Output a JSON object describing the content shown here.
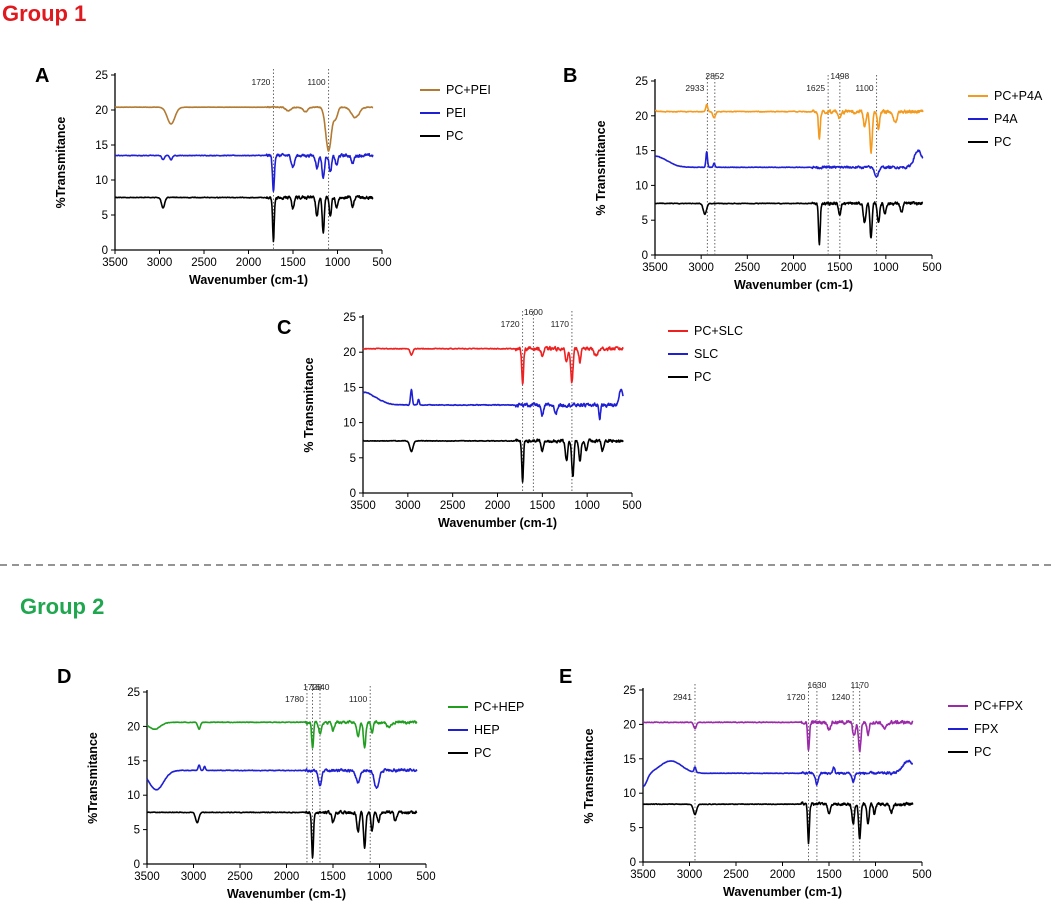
{
  "figure": {
    "group1_title": "Group 1",
    "group1_color": "#e0191f",
    "group2_title": "Group 2",
    "group2_color": "#1fa64f",
    "separator_color": "#555555"
  },
  "chart_data": [
    {
      "panel": "A",
      "type": "line",
      "xlabel": "Wavenumber (cm-1)",
      "ylabel": "%Transmitance",
      "xlim": [
        3500,
        500
      ],
      "ylim": [
        0,
        25
      ],
      "xticks": [
        3500,
        3000,
        2500,
        2000,
        1500,
        1000,
        500
      ],
      "yticks": [
        0,
        5,
        10,
        15,
        20,
        25
      ],
      "annotations": [
        {
          "x": 1720,
          "label": "1720"
        },
        {
          "x": 1100,
          "label": "1100"
        }
      ],
      "series": [
        {
          "name": "PC+PEI",
          "color": "#b27a33",
          "baseline": 20.4,
          "noise": 0.1,
          "features": [
            [
              2870,
              -2.4,
              60
            ],
            [
              1550,
              -0.5,
              40
            ],
            [
              1360,
              -0.6,
              40
            ],
            [
              1100,
              -6.2,
              45
            ],
            [
              1020,
              -1.5,
              30
            ],
            [
              800,
              -1.5,
              60
            ]
          ]
        },
        {
          "name": "PEI",
          "color": "#1f1fd4",
          "baseline": 13.5,
          "noise": 0.3,
          "features": [
            [
              2960,
              -0.6,
              20
            ],
            [
              2870,
              -0.6,
              20
            ],
            [
              1720,
              -5.2,
              15
            ],
            [
              1500,
              -1.6,
              25
            ],
            [
              1230,
              -1.8,
              20
            ],
            [
              1160,
              -3.2,
              20
            ],
            [
              1080,
              -2.4,
              20
            ],
            [
              1010,
              -1.4,
              20
            ],
            [
              830,
              -1.2,
              20
            ]
          ]
        },
        {
          "name": "PC",
          "color": "#000000",
          "baseline": 7.5,
          "noise": 0.3,
          "features": [
            [
              2960,
              -1.5,
              25
            ],
            [
              1720,
              -6.2,
              13
            ],
            [
              1500,
              -1.6,
              18
            ],
            [
              1230,
              -2.8,
              18
            ],
            [
              1160,
              -5.2,
              16
            ],
            [
              1080,
              -2.8,
              16
            ],
            [
              1010,
              -1.5,
              16
            ],
            [
              830,
              -1.4,
              18
            ]
          ]
        }
      ]
    },
    {
      "panel": "B",
      "type": "line",
      "xlabel": "Wavenumber (cm-1)",
      "ylabel": "% Transmitance",
      "xlim": [
        3500,
        500
      ],
      "ylim": [
        0,
        25
      ],
      "xticks": [
        3500,
        3000,
        2500,
        2000,
        1500,
        1000,
        500
      ],
      "yticks": [
        0,
        5,
        10,
        15,
        20,
        25
      ],
      "annotations": [
        {
          "x": 2933,
          "label": "2933"
        },
        {
          "x": 2852,
          "label": "2852"
        },
        {
          "x": 1625,
          "label": "1625"
        },
        {
          "x": 1498,
          "label": "1498"
        },
        {
          "x": 1100,
          "label": "1100"
        }
      ],
      "series": [
        {
          "name": "PC+P4A",
          "color": "#f39a1f",
          "baseline": 20.6,
          "noise": 0.35,
          "features": [
            [
              3500,
              0.2,
              20
            ],
            [
              2940,
              1.0,
              15
            ],
            [
              2860,
              -0.9,
              20
            ],
            [
              1720,
              -4.0,
              14
            ],
            [
              1500,
              -1.0,
              20
            ],
            [
              1230,
              -2.0,
              20
            ],
            [
              1160,
              -5.8,
              18
            ],
            [
              1080,
              -2.5,
              16
            ],
            [
              900,
              -1.6,
              30
            ]
          ]
        },
        {
          "name": "P4A",
          "color": "#1f1fd4",
          "baseline": 12.6,
          "noise": 0.25,
          "features": [
            [
              3500,
              1.6,
              180
            ],
            [
              2940,
              2.2,
              12
            ],
            [
              2860,
              0.6,
              12
            ],
            [
              1100,
              -1.3,
              30
            ],
            [
              650,
              2.4,
              60
            ]
          ]
        },
        {
          "name": "PC",
          "color": "#000000",
          "baseline": 7.4,
          "noise": 0.3,
          "features": [
            [
              2960,
              -1.5,
              25
            ],
            [
              1720,
              -5.8,
              13
            ],
            [
              1500,
              -1.5,
              18
            ],
            [
              1230,
              -2.8,
              18
            ],
            [
              1160,
              -5.0,
              16
            ],
            [
              1080,
              -2.8,
              16
            ],
            [
              1010,
              -1.5,
              16
            ],
            [
              830,
              -1.3,
              18
            ]
          ]
        }
      ]
    },
    {
      "panel": "C",
      "type": "line",
      "xlabel": "Wavenumber (cm-1)",
      "ylabel": "% Transmitance",
      "xlim": [
        3500,
        500
      ],
      "ylim": [
        0,
        25
      ],
      "xticks": [
        3500,
        3000,
        2500,
        2000,
        1500,
        1000,
        500
      ],
      "yticks": [
        0,
        5,
        10,
        15,
        20,
        25
      ],
      "annotations": [
        {
          "x": 1720,
          "label": "1720"
        },
        {
          "x": 1600,
          "label": "1600"
        },
        {
          "x": 1170,
          "label": "1170"
        }
      ],
      "series": [
        {
          "name": "PC+SLC",
          "color": "#ee2020",
          "baseline": 20.5,
          "noise": 0.35,
          "features": [
            [
              2960,
              -0.9,
              20
            ],
            [
              1720,
              -5.0,
              14
            ],
            [
              1500,
              -1.0,
              20
            ],
            [
              1230,
              -1.8,
              20
            ],
            [
              1170,
              -4.8,
              18
            ],
            [
              1080,
              -1.8,
              16
            ],
            [
              900,
              -1.0,
              30
            ]
          ]
        },
        {
          "name": "SLC",
          "color": "#1f1fd4",
          "baseline": 12.5,
          "noise": 0.35,
          "features": [
            [
              3500,
              1.8,
              200
            ],
            [
              2960,
              2.2,
              14
            ],
            [
              2880,
              0.8,
              12
            ],
            [
              1500,
              -1.6,
              20
            ],
            [
              1350,
              -1.2,
              20
            ],
            [
              860,
              -2.0,
              12
            ],
            [
              620,
              2.2,
              30
            ]
          ]
        },
        {
          "name": "PC",
          "color": "#000000",
          "baseline": 7.4,
          "noise": 0.3,
          "features": [
            [
              2960,
              -1.5,
              25
            ],
            [
              1720,
              -5.8,
              13
            ],
            [
              1500,
              -1.5,
              18
            ],
            [
              1230,
              -2.8,
              18
            ],
            [
              1160,
              -5.2,
              16
            ],
            [
              1080,
              -2.8,
              16
            ],
            [
              1010,
              -1.5,
              16
            ],
            [
              830,
              -1.3,
              18
            ]
          ]
        }
      ]
    },
    {
      "panel": "D",
      "type": "line",
      "xlabel": "Wavenumber (cm-1)",
      "ylabel": "%Transmitance",
      "xlim": [
        3500,
        500
      ],
      "ylim": [
        0,
        25
      ],
      "xticks": [
        3500,
        3000,
        2500,
        2000,
        1500,
        1000,
        500
      ],
      "yticks": [
        0,
        5,
        10,
        15,
        20,
        25
      ],
      "annotations": [
        {
          "x": 1780,
          "label": "1780"
        },
        {
          "x": 1720,
          "label": "1720"
        },
        {
          "x": 1640,
          "label": "1640"
        },
        {
          "x": 1100,
          "label": "1100"
        }
      ],
      "series": [
        {
          "name": "PC+HEP",
          "color": "#1f9e1f",
          "baseline": 20.6,
          "noise": 0.3,
          "features": [
            [
              3420,
              -1.0,
              90
            ],
            [
              2940,
              -1.0,
              20
            ],
            [
              1720,
              -3.8,
              14
            ],
            [
              1640,
              -1.6,
              20
            ],
            [
              1500,
              -1.2,
              20
            ],
            [
              1230,
              -2.0,
              20
            ],
            [
              1160,
              -3.6,
              18
            ],
            [
              1080,
              -1.6,
              16
            ],
            [
              900,
              -0.8,
              30
            ]
          ]
        },
        {
          "name": "HEP",
          "color": "#1f1fd4",
          "baseline": 13.6,
          "noise": 0.3,
          "features": [
            [
              3400,
              -2.8,
              110
            ],
            [
              2940,
              0.8,
              14
            ],
            [
              2880,
              0.6,
              12
            ],
            [
              1640,
              -2.2,
              25
            ],
            [
              1230,
              -1.8,
              30
            ],
            [
              1030,
              -2.5,
              35
            ]
          ]
        },
        {
          "name": "PC",
          "color": "#000000",
          "baseline": 7.5,
          "noise": 0.3,
          "features": [
            [
              2960,
              -1.5,
              25
            ],
            [
              1720,
              -6.5,
              13
            ],
            [
              1500,
              -1.5,
              18
            ],
            [
              1230,
              -2.8,
              18
            ],
            [
              1160,
              -5.2,
              16
            ],
            [
              1080,
              -2.8,
              16
            ],
            [
              1010,
              -1.5,
              16
            ],
            [
              830,
              -1.3,
              18
            ]
          ]
        }
      ]
    },
    {
      "panel": "E",
      "type": "line",
      "xlabel": "Wavenumber (cm-1)",
      "ylabel": "% Transmitance",
      "xlim": [
        3500,
        500
      ],
      "ylim": [
        0,
        25
      ],
      "xticks": [
        3500,
        3000,
        2500,
        2000,
        1500,
        1000,
        500
      ],
      "yticks": [
        0,
        5,
        10,
        15,
        20,
        25
      ],
      "annotations": [
        {
          "x": 2941,
          "label": "2941"
        },
        {
          "x": 1720,
          "label": "1720"
        },
        {
          "x": 1630,
          "label": "1630"
        },
        {
          "x": 1240,
          "label": "1240"
        },
        {
          "x": 1170,
          "label": "1170"
        }
      ],
      "series": [
        {
          "name": "PC+FPX",
          "color": "#9a2aa8",
          "baseline": 20.3,
          "noise": 0.35,
          "features": [
            [
              2941,
              -0.9,
              20
            ],
            [
              1720,
              -4.0,
              14
            ],
            [
              1500,
              -1.0,
              20
            ],
            [
              1230,
              -2.0,
              20
            ],
            [
              1170,
              -4.2,
              18
            ],
            [
              1080,
              -1.8,
              16
            ],
            [
              900,
              -1.0,
              30
            ]
          ]
        },
        {
          "name": "FPX",
          "color": "#1f1fd4",
          "baseline": 12.9,
          "noise": 0.25,
          "features": [
            [
              3500,
              -2.0,
              60
            ],
            [
              3200,
              1.8,
              160
            ],
            [
              2941,
              0.8,
              14
            ],
            [
              1630,
              -1.6,
              22
            ],
            [
              1450,
              0.8,
              15
            ],
            [
              1240,
              -1.2,
              20
            ],
            [
              650,
              1.8,
              80
            ]
          ]
        },
        {
          "name": "PC",
          "color": "#000000",
          "baseline": 8.4,
          "noise": 0.3,
          "features": [
            [
              2941,
              -1.5,
              25
            ],
            [
              1720,
              -5.6,
              13
            ],
            [
              1500,
              -1.5,
              18
            ],
            [
              1240,
              -2.8,
              18
            ],
            [
              1170,
              -5.2,
              16
            ],
            [
              1080,
              -2.8,
              16
            ],
            [
              1010,
              -1.5,
              16
            ],
            [
              830,
              -1.3,
              18
            ]
          ]
        }
      ]
    }
  ]
}
